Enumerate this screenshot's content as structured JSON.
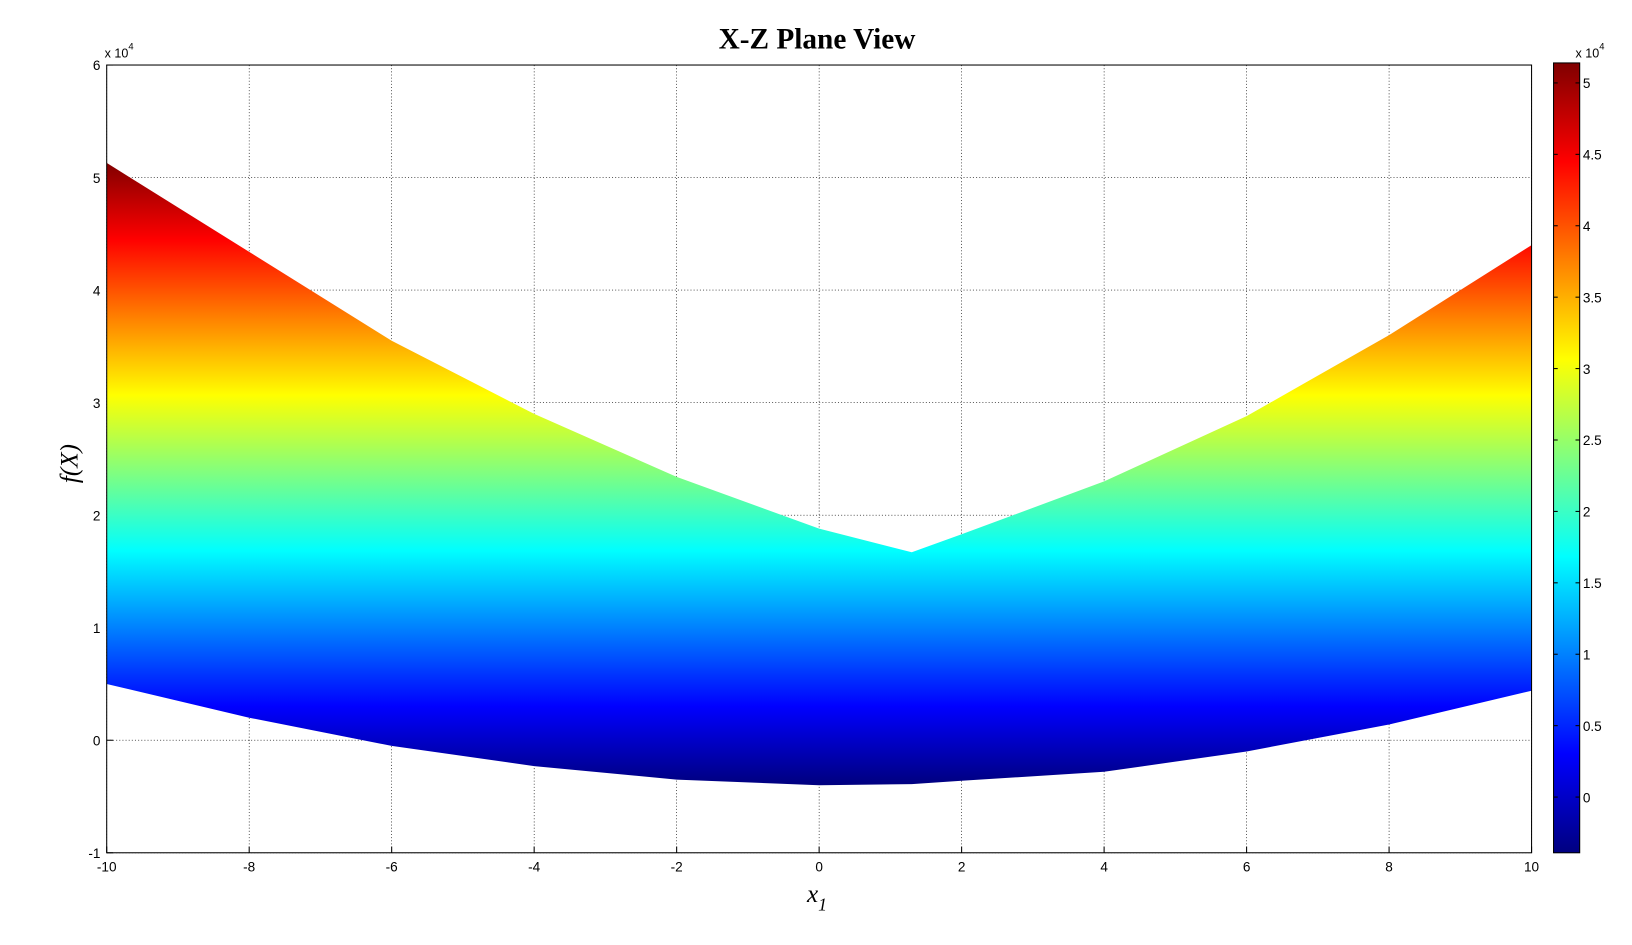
{
  "chart_data": {
    "type": "band",
    "title": "X-Z Plane View",
    "xlabel": "x",
    "xlabel_subscript": "1",
    "ylabel": "f(X)",
    "y_multiplier": "x 10",
    "y_multiplier_exponent": "4",
    "x": [
      -10,
      -8,
      -6,
      -4,
      -2,
      0,
      1.3,
      2,
      4,
      6,
      8,
      10
    ],
    "upper": [
      5.13,
      4.34,
      3.55,
      2.9,
      2.34,
      1.88,
      1.67,
      1.83,
      2.3,
      2.88,
      3.6,
      4.4
    ],
    "lower": [
      0.5,
      0.2,
      -0.05,
      -0.23,
      -0.35,
      -0.4,
      -0.39,
      -0.36,
      -0.28,
      -0.1,
      0.14,
      0.44
    ],
    "xlim": [
      -10,
      10
    ],
    "xticks": [
      -10,
      -8,
      -6,
      -4,
      -2,
      0,
      2,
      4,
      6,
      8,
      10
    ],
    "ylim": [
      -1,
      6
    ],
    "yticks": [
      -1,
      0,
      1,
      2,
      3,
      4,
      5,
      6
    ],
    "grid": true,
    "colormap": "jet",
    "colorbar": {
      "clim": [
        -0.39,
        5.14
      ],
      "ticks": [
        0,
        0.5,
        1,
        1.5,
        2,
        2.5,
        3,
        3.5,
        4,
        4.5,
        5
      ],
      "multiplier": "x 10",
      "multiplier_exponent": "4"
    }
  }
}
